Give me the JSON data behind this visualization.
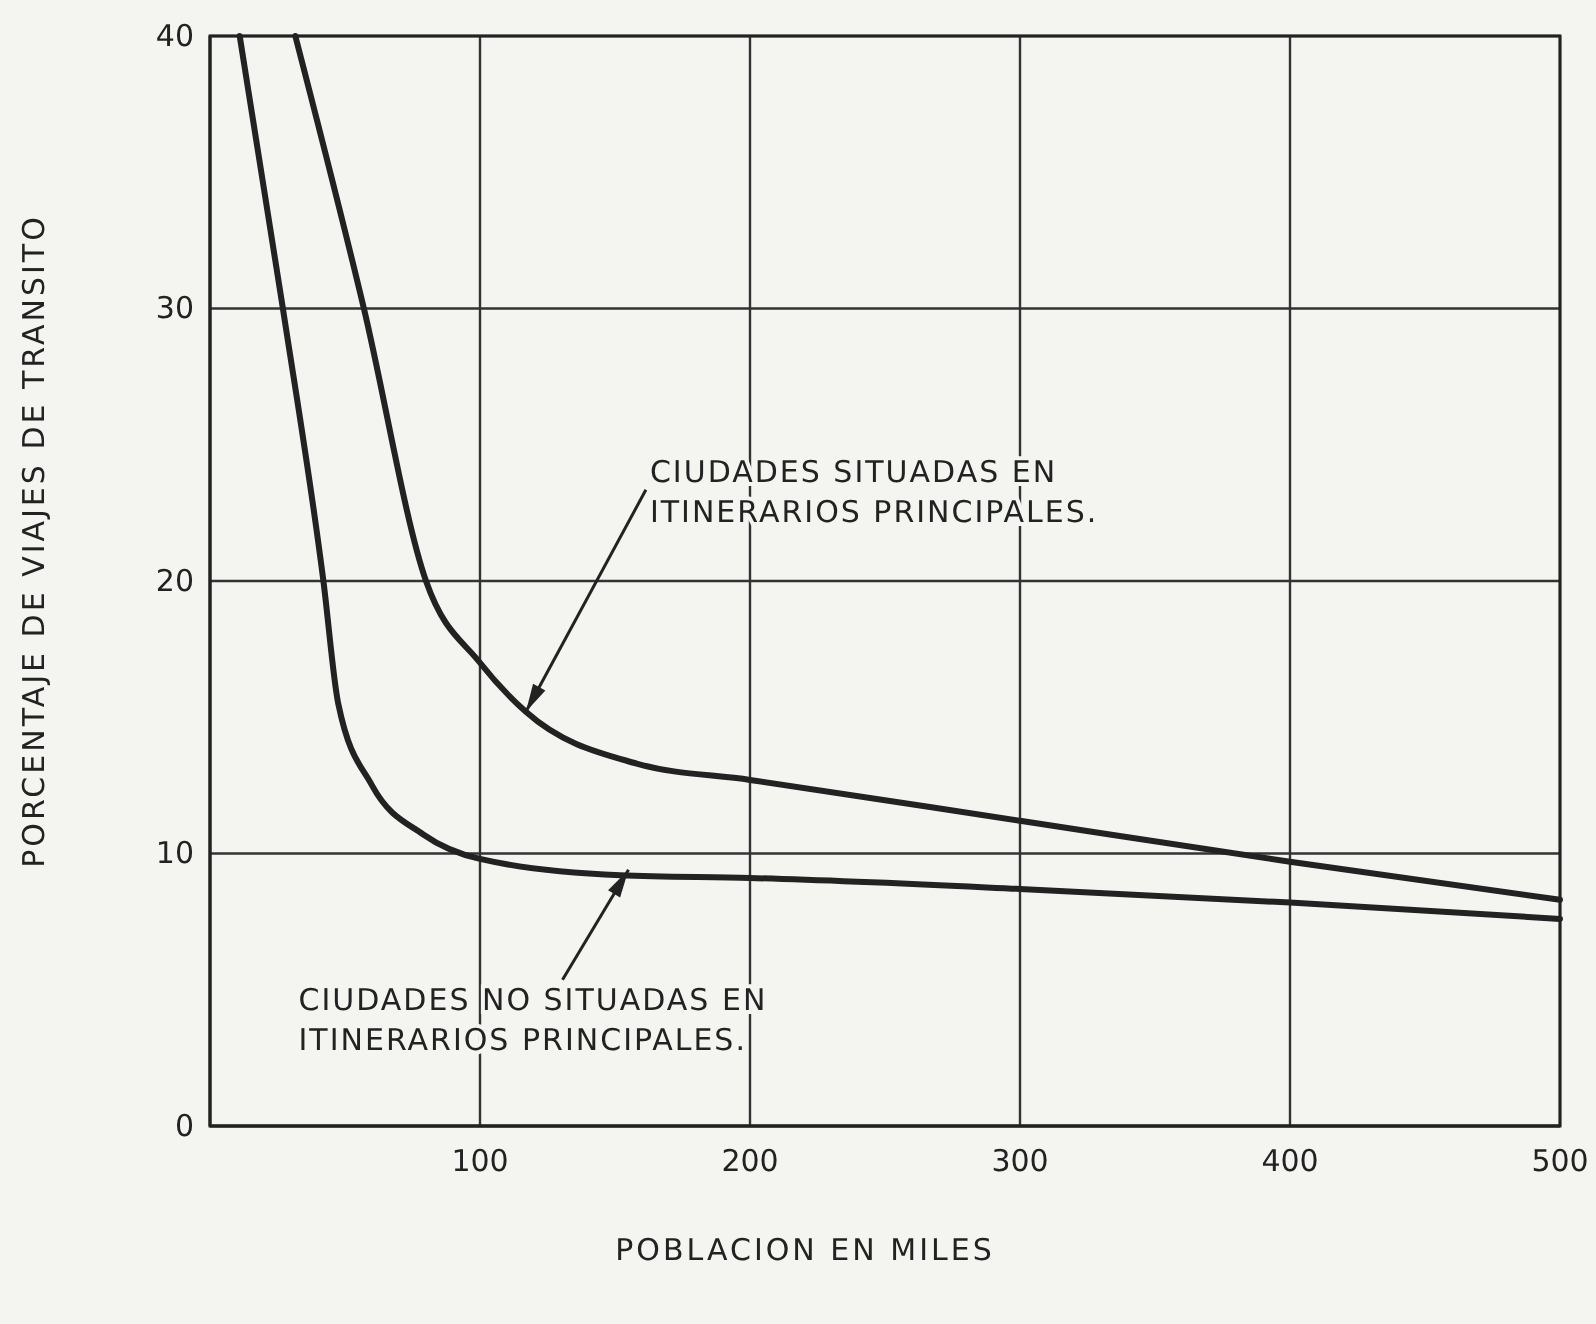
{
  "chart_data": {
    "type": "line",
    "xlabel": "POBLACION EN MILES",
    "ylabel": "PORCENTAJE DE VIAJES DE TRANSITO",
    "xlim": [
      0,
      500
    ],
    "xticks": [
      100,
      200,
      300,
      400,
      500
    ],
    "ylim": [
      0,
      40
    ],
    "yticks": [
      0,
      10,
      20,
      30,
      40
    ],
    "grid": true,
    "marker": "none",
    "line_style": "solid",
    "series": [
      {
        "color": "#222222",
        "x": [
          31.6,
          57,
          80,
          100,
          117,
          158,
          200,
          300,
          400,
          500
        ],
        "values": [
          40,
          30,
          20,
          17.0,
          15.2,
          13.3,
          12.7,
          11.2,
          9.7,
          8.3
        ]
      },
      {
        "color": "#222222",
        "x": [
          11,
          27,
          42,
          47.5,
          60,
          79,
          100,
          152,
          200,
          300,
          400,
          500
        ],
        "values": [
          40,
          30,
          20,
          15.5,
          12.5,
          10.7,
          9.8,
          9.2,
          9.1,
          8.7,
          8.2,
          7.6
        ]
      }
    ],
    "annotations": [
      {
        "text": "CIUDADES SITUADAS EN\nITINERARIOS PRINCIPALES.",
        "x": 117,
        "y": 15.2
      },
      {
        "text": "CIUDADES NO SITUADAS EN\nITINERARIOS PRINCIPALES.",
        "x": 155,
        "y": 9.4
      }
    ]
  }
}
